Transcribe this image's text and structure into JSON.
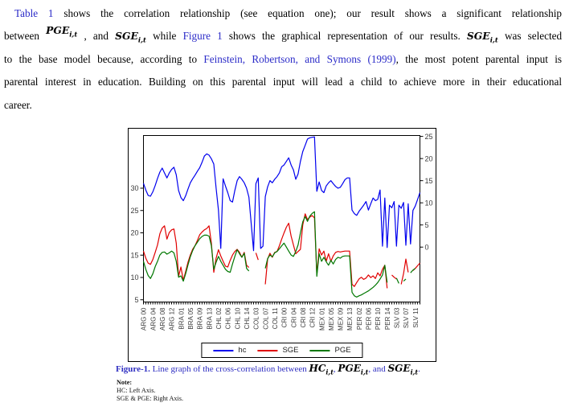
{
  "paragraph": {
    "line1": {
      "link": "Table 1",
      "rest": "shows the correlation relationship (see equation one); our result shows a significant relationship"
    },
    "line2": {
      "w1": "between",
      "m1b": "PGE",
      "m1s": "i,t",
      "c1": ", and",
      "m2b": "SGE",
      "m2s": "i,t",
      "w2": "while",
      "link": "Figure 1",
      "w3": "shows the graphical representation of our results.",
      "m3b": "SGE",
      "m3s": "i,t",
      "w4": "was selected"
    },
    "line3": {
      "pre": "to the base model because, according to",
      "link": "Feinstein, Robertson, and Symons (1999)",
      "post": ", the most potent parental input is"
    },
    "line4": "parental interest in education. Building on this parental input will lead a child to achieve more in their educational",
    "line5": "career."
  },
  "caption": {
    "label": "Figure-1.",
    "body": "Line graph of the cross-correlation between",
    "m1b": "HC",
    "m1s": "i,t",
    "s1": ",",
    "m2b": "PGE",
    "m2s": "i,t",
    "s2": ", and",
    "m3b": "SGE",
    "m3s": "i,t",
    "end": "."
  },
  "note": {
    "title": "Note:",
    "line1": "HC: Left Axis.",
    "line2": "SGE & PGE: Right Axis."
  },
  "colors": {
    "link_blue": "#2b2bc8",
    "caption_blue": "#3030c2",
    "hc_line": "#0000ee",
    "sge_line": "#e00000",
    "pge_line": "#007700"
  },
  "chart_data": {
    "type": "line",
    "n_obs": 119,
    "grid": false,
    "legend_position": "bottom",
    "left_axis": {
      "ticks": [
        30,
        25,
        20,
        15,
        10,
        5
      ],
      "range": [
        4.5,
        41.8
      ]
    },
    "right_axis": {
      "ticks": [
        25,
        20,
        15,
        10,
        5,
        0
      ],
      "range": [
        -12.4,
        25.2
      ]
    },
    "x_ticks": [
      {
        "label": "ARG 00",
        "i": 0
      },
      {
        "label": "ARG 04",
        "i": 4
      },
      {
        "label": "ARG 08",
        "i": 8
      },
      {
        "label": "ARG 12",
        "i": 12
      },
      {
        "label": "BRA 01",
        "i": 16
      },
      {
        "label": "BRA 05",
        "i": 20
      },
      {
        "label": "BRA 09",
        "i": 24
      },
      {
        "label": "BRA 13",
        "i": 28
      },
      {
        "label": "CHL 02",
        "i": 32
      },
      {
        "label": "CHL 06",
        "i": 36
      },
      {
        "label": "CHL 10",
        "i": 40
      },
      {
        "label": "CHL 14",
        "i": 44
      },
      {
        "label": "COL 03",
        "i": 48
      },
      {
        "label": "COL 07",
        "i": 52
      },
      {
        "label": "COL 11",
        "i": 56
      },
      {
        "label": "CRI 00",
        "i": 60
      },
      {
        "label": "CRI 04",
        "i": 64
      },
      {
        "label": "CRI 08",
        "i": 68
      },
      {
        "label": "CRI 12",
        "i": 72
      },
      {
        "label": "MEX 01",
        "i": 76
      },
      {
        "label": "MEX 05",
        "i": 80
      },
      {
        "label": "MEX 09",
        "i": 84
      },
      {
        "label": "MEX 13",
        "i": 88
      },
      {
        "label": "PER 02",
        "i": 92
      },
      {
        "label": "PER 06",
        "i": 96
      },
      {
        "label": "PER 10",
        "i": 100
      },
      {
        "label": "PER 14",
        "i": 104
      },
      {
        "label": "SLV 03",
        "i": 108
      },
      {
        "label": "SLV 07",
        "i": 112
      },
      {
        "label": "SLV 11",
        "i": 116
      }
    ],
    "series": [
      {
        "name": "hc",
        "color": "#0000ee",
        "axis": "left",
        "values": [
          31.1,
          29.6,
          28.4,
          28.2,
          29.2,
          30.6,
          32.2,
          33.6,
          34.5,
          33.4,
          32.3,
          33.4,
          34.2,
          34.7,
          33.0,
          29.5,
          27.9,
          27.2,
          28.3,
          29.8,
          31.2,
          32.1,
          32.9,
          33.8,
          34.6,
          35.8,
          37.2,
          37.7,
          37.4,
          36.6,
          35.4,
          30.0,
          25.1,
          16.5,
          32.1,
          30.5,
          29.0,
          27.2,
          26.9,
          29.5,
          31.7,
          32.6,
          32.0,
          31.2,
          30.0,
          28.0,
          22.0,
          16.0,
          31.0,
          32.3,
          16.5,
          17.0,
          28.1,
          30.3,
          31.7,
          31.2,
          32.0,
          32.6,
          33.4,
          34.8,
          35.2,
          36.0,
          36.8,
          35.2,
          34.1,
          32.0,
          33.2,
          36.0,
          38.2,
          39.6,
          41.0,
          41.3,
          41.4,
          41.5,
          29.3,
          31.4,
          29.5,
          29.0,
          30.5,
          31.2,
          31.7,
          31.0,
          30.4,
          30.0,
          30.2,
          31.0,
          31.9,
          32.3,
          32.3,
          25.1,
          24.3,
          23.9,
          24.8,
          25.5,
          26.2,
          27.0,
          25.1,
          26.5,
          27.8,
          27.2,
          27.5,
          29.6,
          17.0,
          27.8,
          16.7,
          26.2,
          25.6,
          27.0,
          17.0,
          26.2,
          25.5,
          26.8,
          17.2,
          26.5,
          17.5,
          25.0,
          26.0,
          27.5,
          29.0
        ]
      },
      {
        "name": "SGE",
        "color": "#e00000",
        "axis": "right",
        "values": [
          -0.9,
          -2.5,
          -3.6,
          -3.9,
          -2.8,
          -1.2,
          0.5,
          3.0,
          4.3,
          4.8,
          1.8,
          3.3,
          3.9,
          4.1,
          0.9,
          -6.6,
          -4.5,
          -7.5,
          -5.5,
          -3.4,
          -1.8,
          -0.5,
          0.3,
          1.5,
          2.8,
          3.4,
          3.9,
          4.2,
          4.8,
          0.9,
          -5.7,
          -2.5,
          -0.6,
          -2.0,
          -3.2,
          -4.3,
          -4.5,
          -3.0,
          -1.8,
          -1.0,
          -0.5,
          -1.2,
          -2.3,
          -1.2,
          -4.1,
          -4.6,
          null,
          null,
          -1.3,
          -2.9,
          null,
          null,
          -8.4,
          -2.7,
          -1.4,
          -2.3,
          -1.2,
          -1.0,
          0.3,
          1.8,
          3.2,
          4.5,
          5.4,
          2.5,
          0.5,
          -1.5,
          -1.0,
          -0.5,
          5.0,
          7.5,
          6.2,
          6.8,
          7.1,
          6.6,
          -6.3,
          -0.4,
          -1.8,
          -0.9,
          -3.2,
          -1.5,
          -3.2,
          -2.0,
          -1.2,
          -1.0,
          -1.1,
          -1.0,
          -0.9,
          -0.9,
          -0.9,
          -8.4,
          -8.9,
          -8.0,
          -7.2,
          -6.8,
          -7.3,
          -7.0,
          -6.3,
          -6.9,
          -6.5,
          -7.1,
          -5.8,
          -6.5,
          -5.0,
          -4.1,
          -9.3,
          null,
          -6.3,
          -6.8,
          -7.2,
          null,
          -8.4,
          -6.0,
          -2.7,
          -5.7,
          null,
          -5.3,
          -4.8,
          -4.2,
          -3.6
        ]
      },
      {
        "name": "PGE",
        "color": "#007700",
        "axis": "right",
        "values": [
          -3.2,
          -5.0,
          -6.4,
          -7.1,
          -6.0,
          -4.4,
          -3.2,
          -1.8,
          -1.2,
          -1.1,
          -1.6,
          -1.3,
          -0.9,
          -1.3,
          -3.2,
          -6.8,
          -6.5,
          -7.7,
          -6.0,
          -4.0,
          -2.2,
          -0.8,
          0.3,
          1.1,
          1.9,
          2.4,
          2.7,
          2.7,
          2.5,
          0.3,
          -5.0,
          -3.4,
          -2.1,
          -3.2,
          -4.1,
          -5.0,
          -5.5,
          -5.7,
          -3.8,
          -2.1,
          -0.6,
          -1.5,
          -2.3,
          -1.4,
          -4.8,
          -5.4,
          null,
          null,
          -1.5,
          null,
          null,
          null,
          -4.8,
          -2.6,
          -1.8,
          -2.2,
          -1.3,
          -1.0,
          -0.4,
          0.3,
          0.9,
          0.0,
          -0.9,
          -1.8,
          -2.1,
          -1.0,
          0.5,
          3.2,
          5.7,
          6.9,
          5.8,
          7.0,
          7.6,
          8.0,
          -6.6,
          -1.5,
          -3.2,
          -2.3,
          -3.3,
          -4.1,
          -3.0,
          -3.8,
          -2.8,
          -2.3,
          -2.5,
          -2.1,
          -2.0,
          -2.0,
          -2.0,
          -10.2,
          -11.0,
          -11.3,
          -11.0,
          -10.8,
          -10.5,
          -10.2,
          -9.9,
          -9.5,
          -9.1,
          -8.6,
          -8.0,
          -7.2,
          -6.3,
          -4.1,
          -8.0,
          null,
          -6.6,
          null,
          -7.0,
          -8.2,
          null,
          -7.7,
          -7.2,
          null,
          -5.8,
          -5.2,
          -4.8,
          null,
          -4.1
        ]
      }
    ]
  }
}
